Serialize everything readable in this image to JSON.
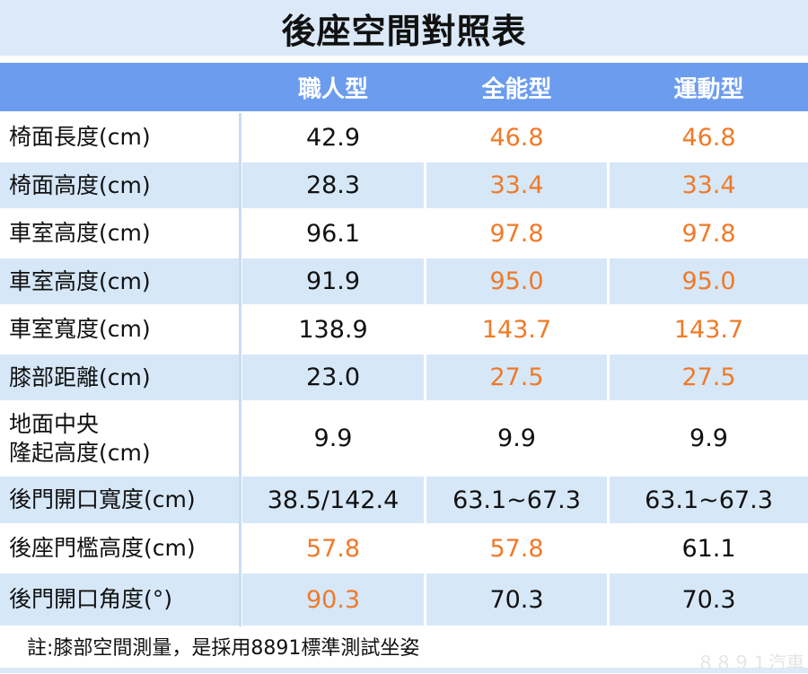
{
  "title": "後座空間對照表",
  "columns": [
    "",
    "職人型",
    "全能型",
    "運動型"
  ],
  "colors": {
    "header": "#6c9cee",
    "row_alt": "#d6e7f8",
    "highlight": "#f07a28",
    "title_band": "#dbe9f8"
  },
  "rows": [
    {
      "label": "椅面長度(cm)",
      "values": [
        "42.9",
        "46.8",
        "46.8"
      ],
      "highlight": [
        false,
        true,
        true
      ]
    },
    {
      "label": "椅面高度(cm)",
      "values": [
        "28.3",
        "33.4",
        "33.4"
      ],
      "highlight": [
        false,
        true,
        true
      ]
    },
    {
      "label": "車室高度(cm)",
      "values": [
        "96.1",
        "97.8",
        "97.8"
      ],
      "highlight": [
        false,
        true,
        true
      ]
    },
    {
      "label": "車室高度(cm)",
      "values": [
        "91.9",
        "95.0",
        "95.0"
      ],
      "highlight": [
        false,
        true,
        true
      ]
    },
    {
      "label": "車室寬度(cm)",
      "values": [
        "138.9",
        "143.7",
        "143.7"
      ],
      "highlight": [
        false,
        true,
        true
      ]
    },
    {
      "label": "膝部距離(cm)",
      "values": [
        "23.0",
        "27.5",
        "27.5"
      ],
      "highlight": [
        false,
        true,
        true
      ]
    },
    {
      "label": "地面中央\n隆起高度(cm)",
      "values": [
        "9.9",
        "9.9",
        "9.9"
      ],
      "highlight": [
        false,
        false,
        false
      ]
    },
    {
      "label": "後門開口寬度(cm)",
      "values": [
        "38.5/142.4",
        "63.1~67.3",
        "63.1~67.3"
      ],
      "highlight": [
        false,
        false,
        false
      ]
    },
    {
      "label": "後座門檻高度(cm)",
      "values": [
        "57.8",
        "57.8",
        "61.1"
      ],
      "highlight": [
        true,
        true,
        false
      ]
    },
    {
      "label": "後門開口角度(°)",
      "values": [
        "90.3",
        "70.3",
        "70.3"
      ],
      "highlight": [
        true,
        false,
        false
      ]
    }
  ],
  "footnote": "註:膝部空間測量，是採用8891標準測試坐姿",
  "watermark": "8891汽車"
}
